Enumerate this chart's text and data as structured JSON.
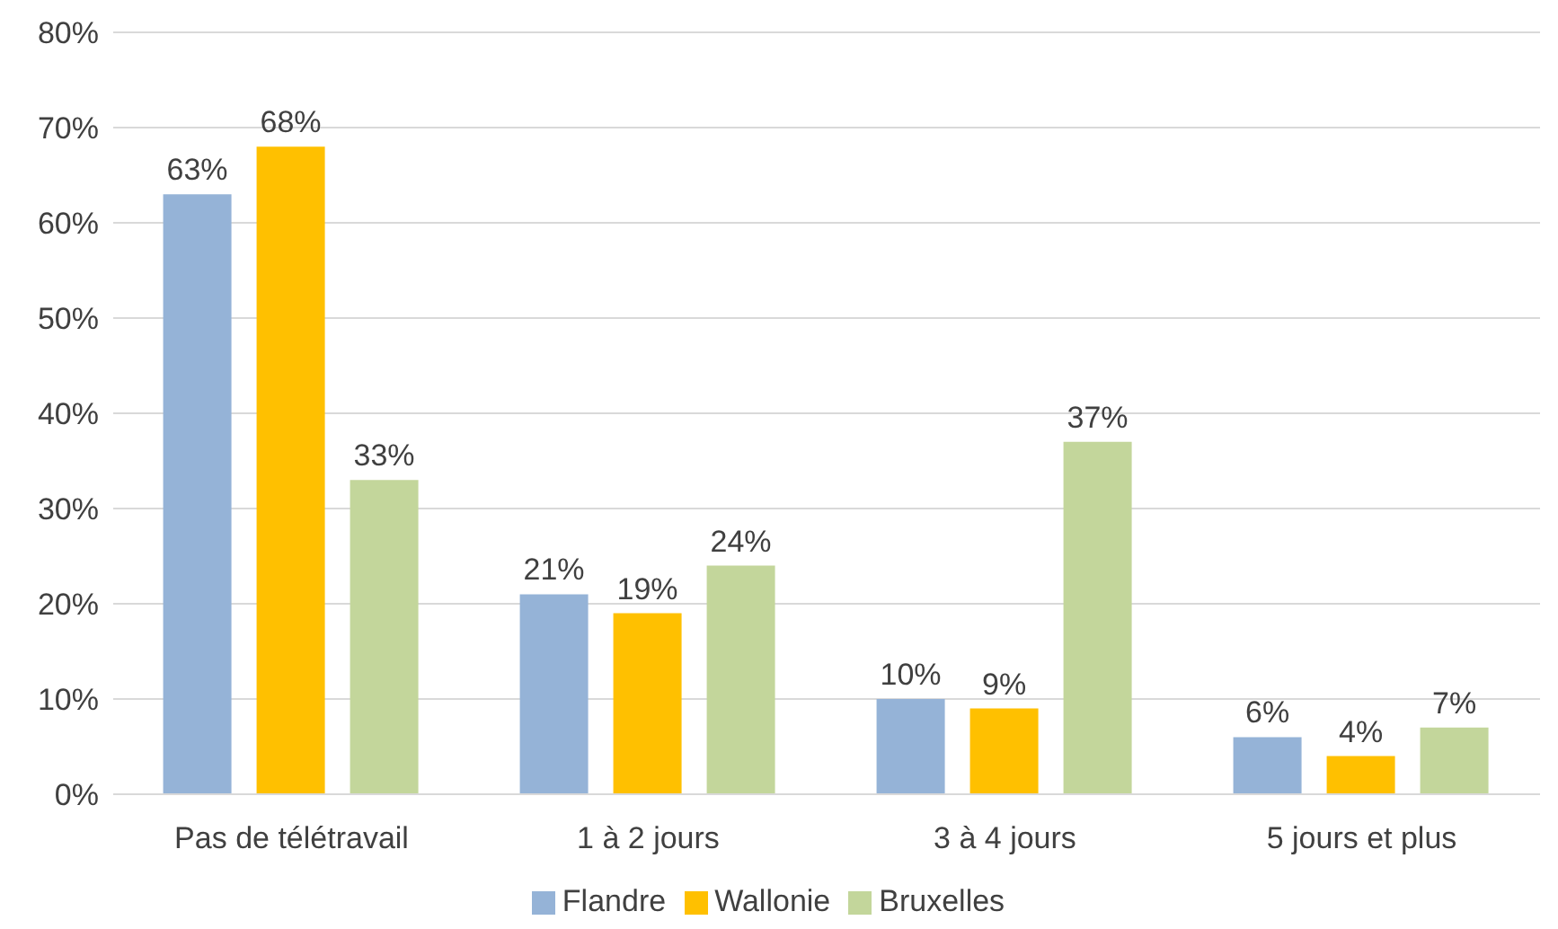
{
  "chart_data": {
    "type": "bar",
    "categories": [
      "Pas de télétravail",
      "1 à 2 jours",
      "3 à 4 jours",
      "5 jours et plus"
    ],
    "series": [
      {
        "name": "Flandre",
        "color": "#95b3d7",
        "values": [
          63,
          21,
          10,
          6
        ],
        "value_labels": [
          "63%",
          "21%",
          "10%",
          "6%"
        ]
      },
      {
        "name": "Wallonie",
        "color": "#ffc000",
        "values": [
          68,
          19,
          9,
          4
        ],
        "value_labels": [
          "68%",
          "19%",
          "9%",
          "4%"
        ]
      },
      {
        "name": "Bruxelles",
        "color": "#c3d69b",
        "values": [
          33,
          24,
          37,
          7
        ],
        "value_labels": [
          "33%",
          "24%",
          "37%",
          "7%"
        ]
      }
    ],
    "ylim": [
      0,
      80
    ],
    "yticks": [
      {
        "value": 0,
        "label": "0%"
      },
      {
        "value": 10,
        "label": "10%"
      },
      {
        "value": 20,
        "label": "20%"
      },
      {
        "value": 30,
        "label": "30%"
      },
      {
        "value": 40,
        "label": "40%"
      },
      {
        "value": 50,
        "label": "50%"
      },
      {
        "value": 60,
        "label": "60%"
      },
      {
        "value": 70,
        "label": "70%"
      },
      {
        "value": 80,
        "label": "80%"
      }
    ],
    "grid": "y",
    "legend": "bottom"
  }
}
